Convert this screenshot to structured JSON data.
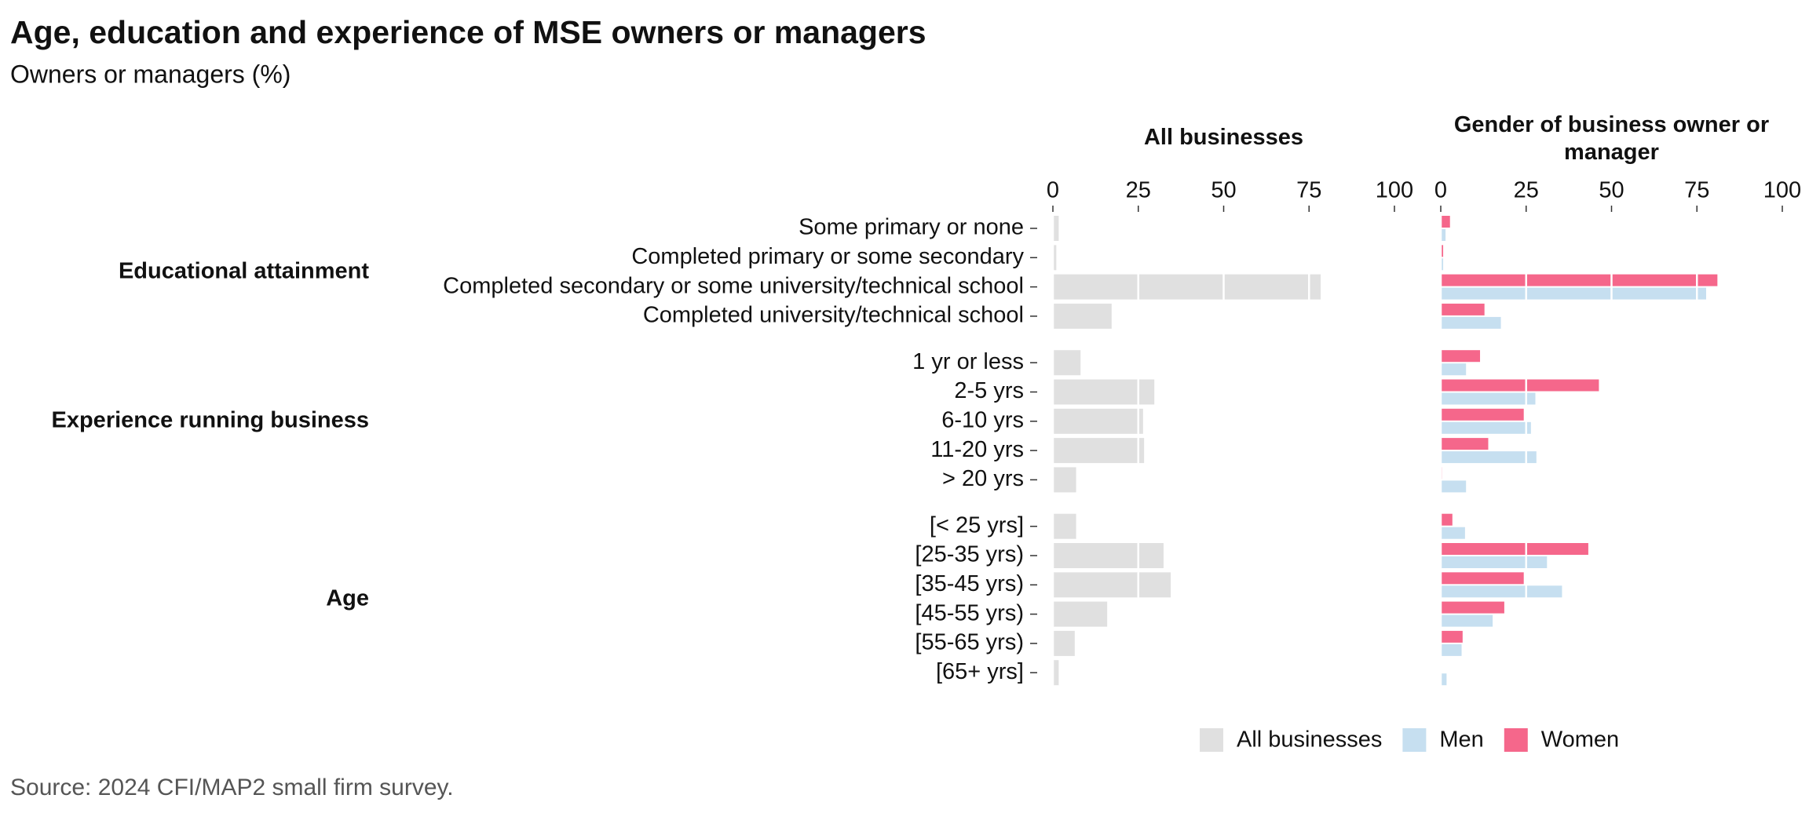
{
  "chart_data": {
    "type": "bar",
    "orientation": "horizontal",
    "title": "Age, education and experience of MSE owners or managers",
    "subtitle": "Owners or managers (%)",
    "source": "Source: 2024 CFI/MAP2 small firm survey.",
    "grid": true,
    "groups": [
      {
        "label": "Educational attainment",
        "categories": [
          "Some primary or none",
          "Completed primary or some secondary",
          "Completed secondary or some university/technical school",
          "Completed university/technical school"
        ]
      },
      {
        "label": "Experience running business",
        "categories": [
          "1 yr or less",
          "2-5 yrs",
          "6-10 yrs",
          "11-20 yrs",
          "> 20 yrs"
        ]
      },
      {
        "label": "Age",
        "categories": [
          "[< 25 yrs]",
          "[25-35 yrs)",
          "[35-45 yrs)",
          "[45-55 yrs)",
          "[55-65 yrs)",
          "[65+ yrs]"
        ]
      }
    ],
    "panels": [
      {
        "title": "All businesses",
        "xlim": [
          0,
          100
        ],
        "xticks": [
          0,
          25,
          50,
          75,
          100
        ],
        "series": [
          {
            "name": "All businesses",
            "color": "#e0e0e0",
            "values": [
              1.7,
              1,
              78.4,
              17.2,
              8.1,
              29.7,
              26.4,
              26.7,
              6.8,
              6.8,
              32.4,
              34.5,
              15.9,
              6.4,
              1.7
            ]
          }
        ]
      },
      {
        "title": "Gender of business owner or manager",
        "xlim": [
          0,
          100
        ],
        "xticks": [
          0,
          25,
          50,
          75,
          100
        ],
        "series": [
          {
            "name": "Men",
            "color": "#c6dff0",
            "values": [
              1.4,
              0.7,
              77.7,
              17.6,
              7.4,
              27.7,
              26.4,
              28,
              7.4,
              7.1,
              31.1,
              35.5,
              15.2,
              6.1,
              1.7
            ]
          },
          {
            "name": "Women",
            "color": "#f5678b",
            "values": [
              2.7,
              0.7,
              81,
              12.8,
              11.5,
              46.3,
              24.3,
              13.9,
              0.3,
              3.4,
              43.2,
              24.3,
              18.6,
              6.4,
              0
            ]
          }
        ]
      }
    ]
  }
}
